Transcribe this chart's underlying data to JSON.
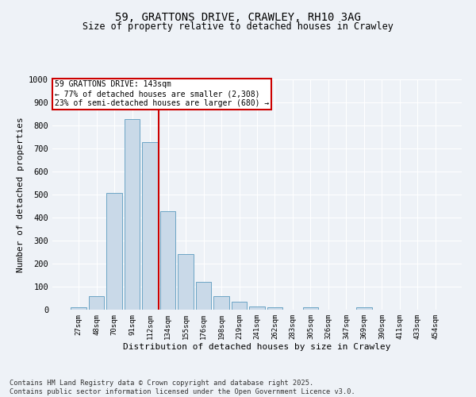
{
  "title_line1": "59, GRATTONS DRIVE, CRAWLEY, RH10 3AG",
  "title_line2": "Size of property relative to detached houses in Crawley",
  "xlabel": "Distribution of detached houses by size in Crawley",
  "ylabel": "Number of detached properties",
  "bar_labels": [
    "27sqm",
    "48sqm",
    "70sqm",
    "91sqm",
    "112sqm",
    "134sqm",
    "155sqm",
    "176sqm",
    "198sqm",
    "219sqm",
    "241sqm",
    "262sqm",
    "283sqm",
    "305sqm",
    "326sqm",
    "347sqm",
    "369sqm",
    "390sqm",
    "411sqm",
    "433sqm",
    "454sqm"
  ],
  "bar_values": [
    10,
    60,
    507,
    827,
    727,
    427,
    240,
    120,
    57,
    35,
    15,
    10,
    0,
    10,
    0,
    0,
    10,
    0,
    0,
    0,
    0
  ],
  "bar_color": "#c9d9e8",
  "bar_edge_color": "#5a9abf",
  "property_line_x": 4.5,
  "property_line_color": "#cc0000",
  "annotation_title": "59 GRATTONS DRIVE: 143sqm",
  "annotation_line1": "← 77% of detached houses are smaller (2,308)",
  "annotation_line2": "23% of semi-detached houses are larger (680) →",
  "annotation_box_color": "#cc0000",
  "ylim": [
    0,
    1000
  ],
  "yticks": [
    0,
    100,
    200,
    300,
    400,
    500,
    600,
    700,
    800,
    900,
    1000
  ],
  "background_color": "#eef2f7",
  "grid_color": "#ffffff",
  "footer_line1": "Contains HM Land Registry data © Crown copyright and database right 2025.",
  "footer_line2": "Contains public sector information licensed under the Open Government Licence v3.0."
}
